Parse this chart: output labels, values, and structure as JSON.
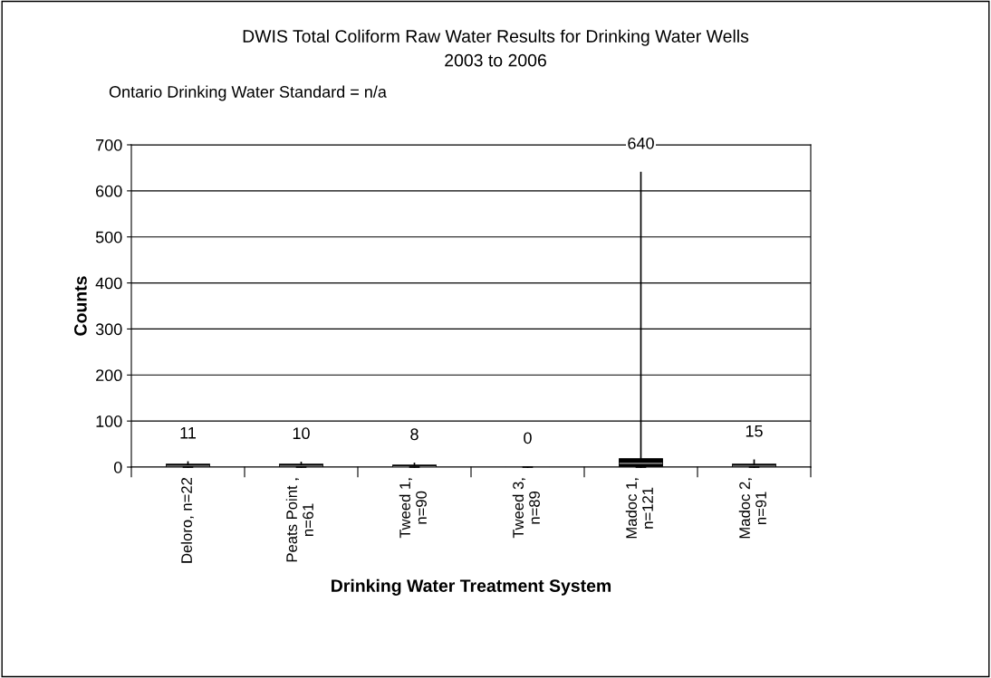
{
  "chart_data": {
    "type": "box",
    "title": "DWIS Total Coliform Raw Water Results for Drinking Water Wells\n2003 to 2006",
    "subtitle": "Ontario Drinking Water Standard = n/a",
    "xlabel": "Drinking Water Treatment System",
    "ylabel": "Counts",
    "categories": [
      "Deloro, n=22",
      "Peats Point ,\nn=61",
      "Tweed 1,\nn=90",
      "Tweed 3,\nn=89",
      "Madoc 1,\nn=121",
      "Madoc 2,\nn=91"
    ],
    "boxes": [
      {
        "low": 0,
        "q1": 0,
        "median": 2,
        "q3": 6,
        "high": 11
      },
      {
        "low": 0,
        "q1": 0,
        "median": 2,
        "q3": 6,
        "high": 10
      },
      {
        "low": 0,
        "q1": 0,
        "median": 1,
        "q3": 4,
        "high": 8
      },
      {
        "low": 0,
        "q1": 0,
        "median": 0,
        "q3": 0,
        "high": 0
      },
      {
        "low": 0,
        "q1": 2,
        "median": 8,
        "q3": 18,
        "high": 640
      },
      {
        "low": 0,
        "q1": 0,
        "median": 2,
        "q3": 6,
        "high": 15
      }
    ],
    "value_labels": [
      "11",
      "10",
      "8",
      "0",
      "640",
      "15"
    ],
    "color": "#000000",
    "ylim": [
      0,
      700
    ],
    "yticks": [
      0,
      100,
      200,
      300,
      400,
      500,
      600,
      700
    ],
    "grid": "y",
    "legend": false
  }
}
